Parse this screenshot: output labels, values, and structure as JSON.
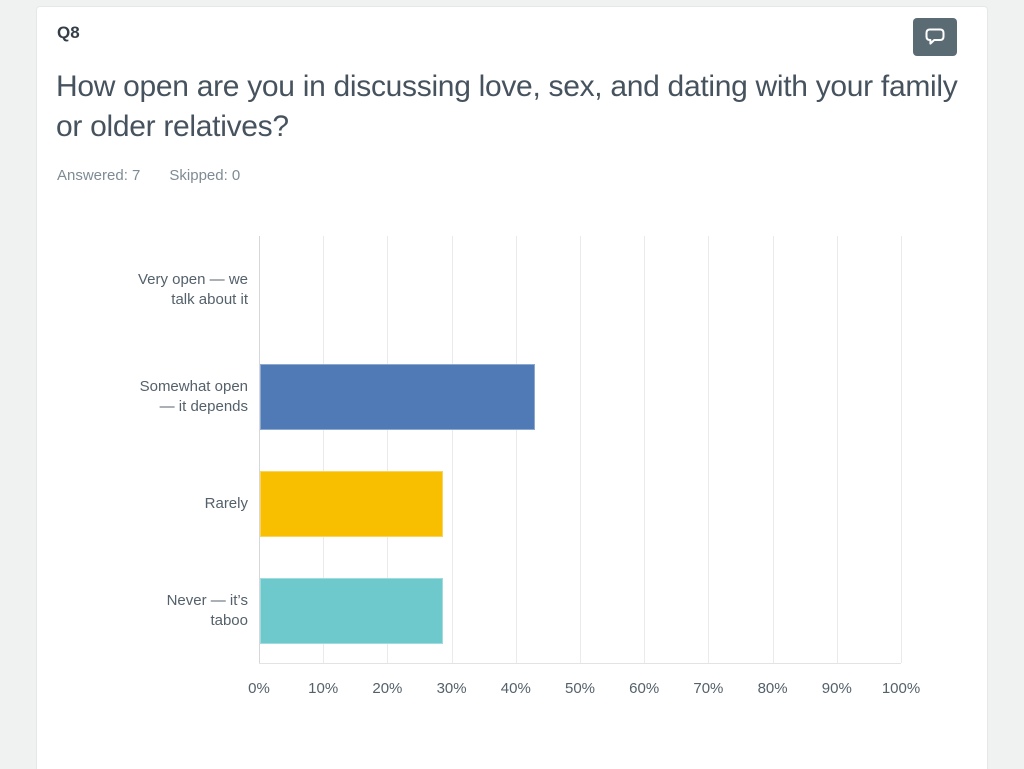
{
  "page": {
    "background_color": "#f0f2f1",
    "card_background": "#ffffff"
  },
  "header": {
    "question_number": "Q8",
    "title": "How open are you in discussing love, sex, and dating with your family or older relatives?",
    "answered": "Answered: 7",
    "skipped": "Skipped: 0",
    "comment_button": {
      "icon": "speech-bubble-icon",
      "background": "#5b6b74"
    }
  },
  "chart_data": {
    "type": "bar",
    "orientation": "horizontal",
    "categories": [
      "Very open — we talk about it",
      "Somewhat open — it depends",
      "Rarely",
      "Never — it’s taboo"
    ],
    "category_label_lines": [
      [
        "Very open — we",
        "talk about it"
      ],
      [
        "Somewhat open",
        "— it depends"
      ],
      [
        "Rarely"
      ],
      [
        "Never — it’s",
        "taboo"
      ]
    ],
    "values": [
      0,
      42.86,
      28.57,
      28.57
    ],
    "bar_colors": [
      null,
      "#507ab6",
      "#f8be00",
      "#6ec9cd"
    ],
    "xlabel": "",
    "ylabel": "",
    "xlim": [
      0,
      100
    ],
    "xticks": [
      "0%",
      "10%",
      "20%",
      "30%",
      "40%",
      "50%",
      "60%",
      "70%",
      "80%",
      "90%",
      "100%"
    ],
    "grid": true,
    "gridline_color": "#e9eaea",
    "axis_line_color": "#d5d7d8",
    "legend": false
  }
}
